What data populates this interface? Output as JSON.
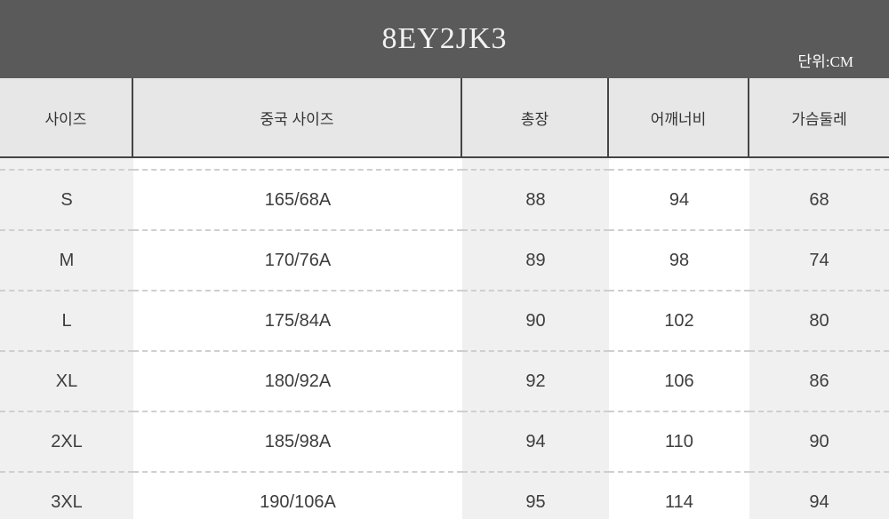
{
  "banner": {
    "title": "8EY2JK3",
    "unit_label": "단위:CM"
  },
  "table": {
    "columns": [
      {
        "key": "size",
        "label": "사이즈",
        "shaded": true
      },
      {
        "key": "cn_size",
        "label": "중국 사이즈",
        "shaded": false
      },
      {
        "key": "length",
        "label": "총장",
        "shaded": true
      },
      {
        "key": "shoulder",
        "label": "어깨너비",
        "shaded": false
      },
      {
        "key": "chest",
        "label": "가슴둘레",
        "shaded": true
      }
    ],
    "rows": [
      {
        "size": "S",
        "cn_size": "165/68A",
        "length": "88",
        "shoulder": "94",
        "chest": "68"
      },
      {
        "size": "M",
        "cn_size": "170/76A",
        "length": "89",
        "shoulder": "98",
        "chest": "74"
      },
      {
        "size": "L",
        "cn_size": "175/84A",
        "length": "90",
        "shoulder": "102",
        "chest": "80"
      },
      {
        "size": "XL",
        "cn_size": "180/92A",
        "length": "92",
        "shoulder": "106",
        "chest": "86"
      },
      {
        "size": "2XL",
        "cn_size": "185/98A",
        "length": "94",
        "shoulder": "110",
        "chest": "90"
      },
      {
        "size": "3XL",
        "cn_size": "190/106A",
        "length": "95",
        "shoulder": "114",
        "chest": "94"
      }
    ]
  },
  "colors": {
    "banner_bg": "#5a5a5a",
    "banner_text": "#f2f2f2",
    "header_cell_bg": "#e7e7e7",
    "header_border": "#454545",
    "shaded_col_bg": "#f0f0f0",
    "row_divider": "#cfcfcf",
    "body_text": "#3d3d3d"
  }
}
